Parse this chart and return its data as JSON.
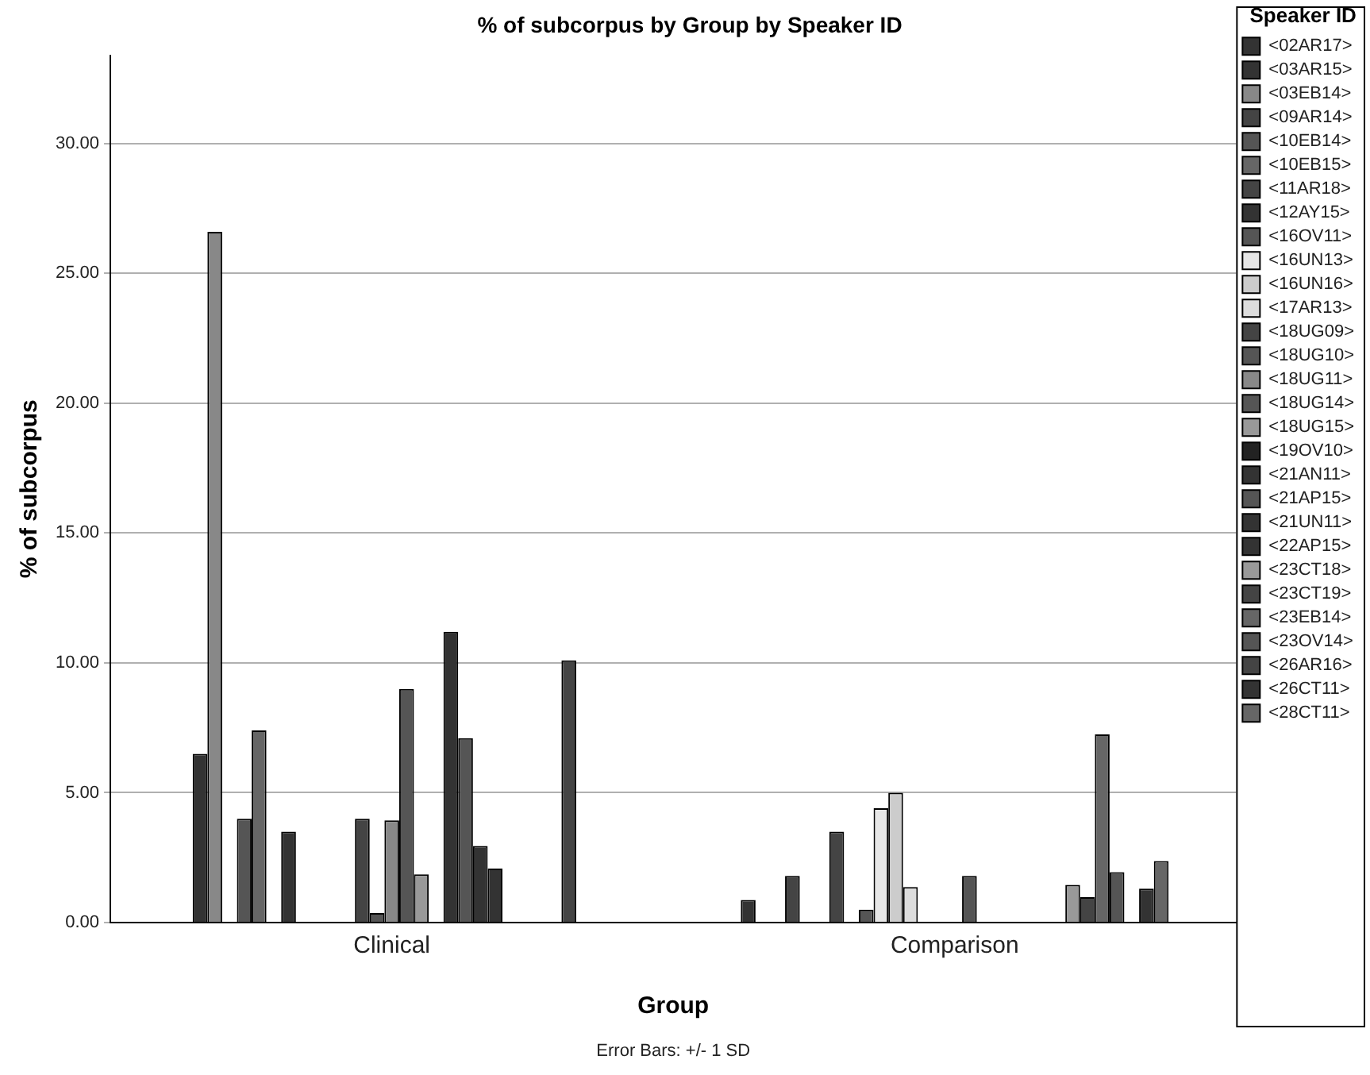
{
  "chart_data": {
    "type": "bar",
    "title": "% of subcorpus by Group by Speaker ID",
    "xlabel": "Group",
    "ylabel": "% of subcorpus",
    "legend_title": "Speaker ID",
    "annotations": [
      "Error Bars: +/- 1 SD"
    ],
    "categories": [
      "Clinical",
      "Comparison"
    ],
    "ylim": [
      0,
      33.4
    ],
    "yticks": [
      {
        "value": 0,
        "label": "0.00"
      },
      {
        "value": 5,
        "label": "5.00"
      },
      {
        "value": 10,
        "label": "10.00"
      },
      {
        "value": 15,
        "label": "15.00"
      },
      {
        "value": 20,
        "label": "20.00"
      },
      {
        "value": 25,
        "label": "25.00"
      },
      {
        "value": 30,
        "label": "30.00"
      }
    ],
    "grid": "y",
    "legend": "right",
    "series": [
      {
        "name": "<02AR17>",
        "color": "#333333",
        "values": [
          null,
          0.87
        ]
      },
      {
        "name": "<03AR15>",
        "color": "#333333",
        "values": [
          6.5,
          null
        ]
      },
      {
        "name": "<03EB14>",
        "color": "#888888",
        "values": [
          26.6,
          null
        ]
      },
      {
        "name": "<09AR14>",
        "color": "#444444",
        "values": [
          null,
          1.8
        ]
      },
      {
        "name": "<10EB14>",
        "color": "#555555",
        "values": [
          4.0,
          null
        ]
      },
      {
        "name": "<10EB15>",
        "color": "#666666",
        "values": [
          7.4,
          null
        ]
      },
      {
        "name": "<11AR18>",
        "color": "#444444",
        "values": [
          null,
          3.5
        ]
      },
      {
        "name": "<12AY15>",
        "color": "#333333",
        "values": [
          3.5,
          null
        ]
      },
      {
        "name": "<16OV11>",
        "color": "#555555",
        "values": [
          null,
          0.5
        ]
      },
      {
        "name": "<16UN13>",
        "color": "#e6e6e6",
        "values": [
          null,
          4.4
        ]
      },
      {
        "name": "<16UN16>",
        "color": "#cccccc",
        "values": [
          null,
          5.0
        ]
      },
      {
        "name": "<17AR13>",
        "color": "#dddddd",
        "values": [
          null,
          1.37
        ]
      },
      {
        "name": "<18UG09>",
        "color": "#444444",
        "values": [
          4.0,
          null
        ]
      },
      {
        "name": "<18UG10>",
        "color": "#555555",
        "values": [
          0.37,
          null
        ]
      },
      {
        "name": "<18UG11>",
        "color": "#888888",
        "values": [
          3.94,
          null
        ]
      },
      {
        "name": "<18UG14>",
        "color": "#555555",
        "values": [
          9.0,
          1.8
        ]
      },
      {
        "name": "<18UG15>",
        "color": "#999999",
        "values": [
          1.86,
          null
        ]
      },
      {
        "name": "<19OV10>",
        "color": "#222222",
        "values": [
          null,
          null
        ]
      },
      {
        "name": "<21AN11>",
        "color": "#333333",
        "values": [
          11.2,
          null
        ]
      },
      {
        "name": "<21AP15>",
        "color": "#555555",
        "values": [
          7.1,
          null
        ]
      },
      {
        "name": "<21UN11>",
        "color": "#333333",
        "values": [
          2.95,
          null
        ]
      },
      {
        "name": "<22AP15>",
        "color": "#333333",
        "values": [
          2.08,
          null
        ]
      },
      {
        "name": "<23CT18>",
        "color": "#999999",
        "values": [
          null,
          1.45
        ]
      },
      {
        "name": "<23CT19>",
        "color": "#444444",
        "values": [
          null,
          0.98
        ]
      },
      {
        "name": "<23EB14>",
        "color": "#666666",
        "values": [
          null,
          7.25
        ]
      },
      {
        "name": "<23OV14>",
        "color": "#555555",
        "values": [
          null,
          1.94
        ]
      },
      {
        "name": "<26AR16>",
        "color": "#444444",
        "values": [
          10.1,
          null
        ]
      },
      {
        "name": "<26CT11>",
        "color": "#333333",
        "values": [
          null,
          1.31
        ]
      },
      {
        "name": "<28CT11>",
        "color": "#666666",
        "values": [
          null,
          2.37
        ]
      }
    ]
  }
}
